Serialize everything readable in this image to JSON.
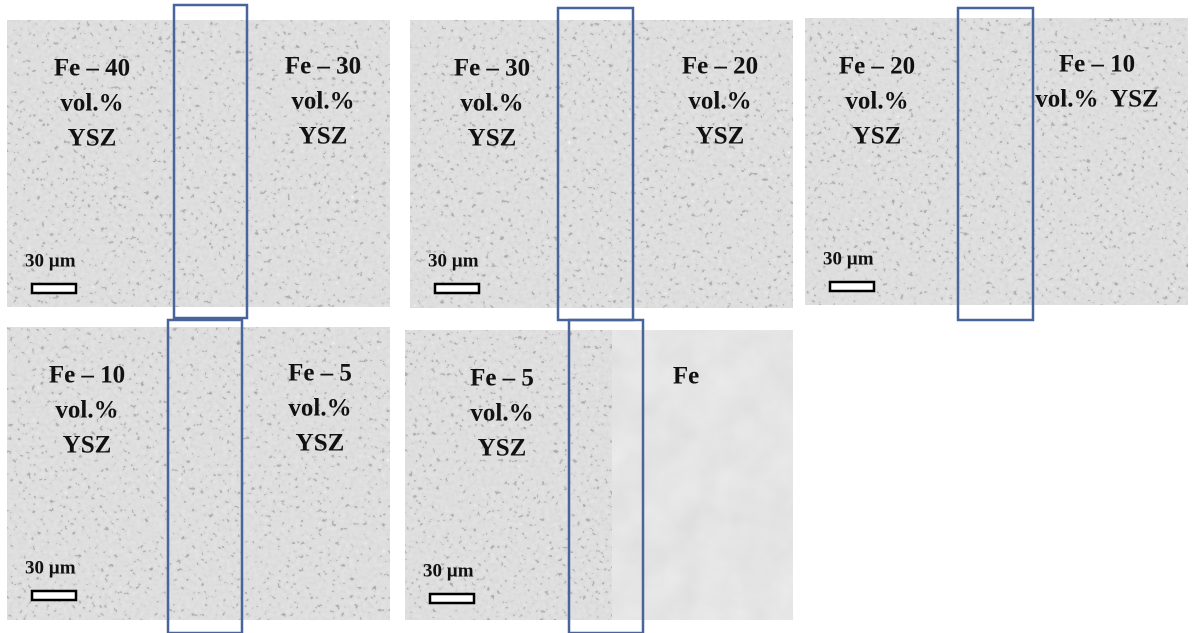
{
  "panels": [
    {
      "left_label": [
        "Fe – 40",
        "vol.%",
        "YSZ"
      ],
      "right_label": [
        "Fe – 30",
        "vol.%",
        "YSZ"
      ],
      "scale_bar": "30 µm"
    },
    {
      "left_label": [
        "Fe – 30",
        "vol.%",
        "YSZ"
      ],
      "right_label": [
        "Fe – 20",
        "vol.%",
        "YSZ"
      ],
      "scale_bar": "30 µm"
    },
    {
      "left_label": [
        "Fe – 20",
        "vol.%",
        "YSZ"
      ],
      "right_label": [
        "Fe – 10",
        "vol.%  YSZ"
      ],
      "scale_bar": "30 µm"
    },
    {
      "left_label": [
        "Fe – 10",
        "vol.%",
        "YSZ"
      ],
      "right_label": [
        "Fe – 5",
        "vol.%",
        "YSZ"
      ],
      "scale_bar": "30 µm"
    },
    {
      "left_label": [
        "Fe – 5",
        "vol.%",
        "YSZ"
      ],
      "right_label": [
        "Fe"
      ],
      "scale_bar": "30 µm"
    }
  ]
}
